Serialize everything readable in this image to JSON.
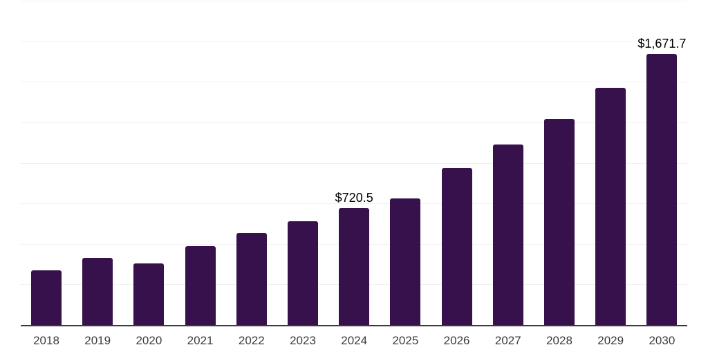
{
  "chart_data": {
    "type": "bar",
    "title": "",
    "xlabel": "",
    "ylabel": "",
    "categories": [
      "2018",
      "2019",
      "2020",
      "2021",
      "2022",
      "2023",
      "2024",
      "2025",
      "2026",
      "2027",
      "2028",
      "2029",
      "2030"
    ],
    "values": [
      337,
      415,
      380,
      486,
      566,
      640,
      720.5,
      781,
      967,
      1113,
      1272,
      1461,
      1671.7
    ],
    "value_labels": [
      "",
      "",
      "",
      "",
      "",
      "",
      "$720.5",
      "",
      "",
      "",
      "",
      "",
      "$1,671.7"
    ],
    "ylim": [
      0,
      2000
    ],
    "gridline_interval": 250,
    "grid": true,
    "y_axis_tick_labels_visible": false,
    "legend_position": "none",
    "colors": {
      "bar": "#36114B",
      "gridline": "#f1f1f1",
      "axis_line": "#3a3a3a",
      "tick_label": "#3c3c3c",
      "value_label": "#000000",
      "background": "#ffffff"
    }
  }
}
